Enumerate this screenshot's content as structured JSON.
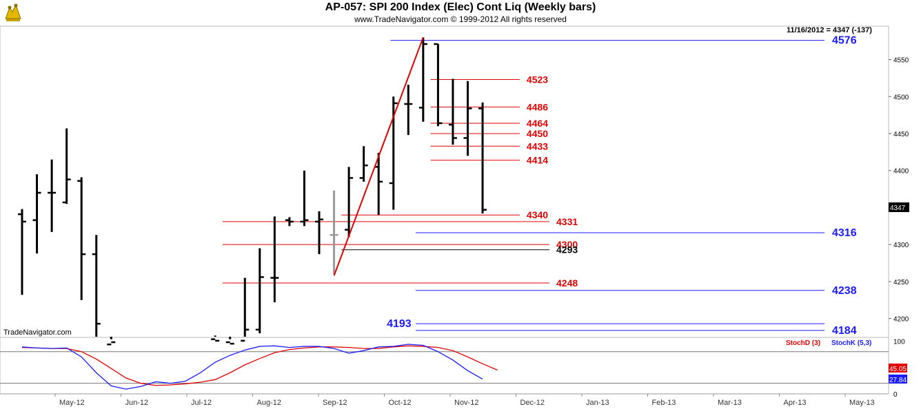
{
  "header": {
    "title": "AP-057:  SPI 200 Index (Elec) Cont Liq  (Weekly bars)",
    "subtitle": "www.TradeNavigator.com © 1999-2012 All rights reserved",
    "last_value_readout": "11/16/2012 = 4347 (-137)",
    "watermark": "TradeNavigator.com",
    "logo": "bull-bear-logo-icon"
  },
  "chart_data": [
    {
      "type": "bar",
      "subtype": "ohlc",
      "title": "AP-057:  SPI 200 Index (Elec) Cont Liq  (Weekly bars)",
      "xlabel": "",
      "ylabel": "",
      "ylim": [
        4160,
        4590
      ],
      "y_ticks": [
        4200,
        4250,
        4300,
        4350,
        4400,
        4450,
        4500,
        4550
      ],
      "x_tick_labels": [
        "May-12",
        "Jun-12",
        "Jul-12",
        "Aug-12",
        "Sep-12",
        "Oct-12",
        "Nov-12",
        "Dec-12",
        "Jan-13",
        "Feb-13",
        "Mar-13",
        "Apr-13",
        "May-13"
      ],
      "last_price_label": "4347",
      "bars": [
        {
          "week": 0,
          "o": 4341,
          "h": 4348,
          "l": 4232,
          "c": 4331
        },
        {
          "week": 1,
          "o": 4333,
          "h": 4395,
          "l": 4288,
          "c": 4370
        },
        {
          "week": 2,
          "o": 4370,
          "h": 4415,
          "l": 4317,
          "c": 4370
        },
        {
          "week": 3,
          "o": 4357,
          "h": 4457,
          "l": 4355,
          "c": 4388
        },
        {
          "week": 4,
          "o": 4386,
          "h": 4391,
          "l": 4225,
          "c": 4287
        },
        {
          "week": 5,
          "o": 4287,
          "h": 4313,
          "l": 4162,
          "c": 4193
        },
        {
          "week": 6,
          "o": 4165,
          "h": 4172,
          "l": 4150,
          "c": 4168
        },
        {
          "week": 13,
          "o": 4172,
          "h": 4177,
          "l": 4160,
          "c": 4170
        },
        {
          "week": 14,
          "o": 4168,
          "h": 4172,
          "l": 4162,
          "c": 4166
        },
        {
          "week": 15,
          "o": 4170,
          "h": 4255,
          "l": 4165,
          "c": 4185
        },
        {
          "week": 16,
          "o": 4185,
          "h": 4295,
          "l": 4180,
          "c": 4256
        },
        {
          "week": 17,
          "o": 4255,
          "h": 4338,
          "l": 4222,
          "c": 4255
        },
        {
          "week": 18,
          "o": 4333,
          "h": 4337,
          "l": 4325,
          "c": 4331
        },
        {
          "week": 19,
          "o": 4331,
          "h": 4400,
          "l": 4325,
          "c": 4333
        },
        {
          "week": 20,
          "o": 4331,
          "h": 4345,
          "l": 4287,
          "c": 4334
        },
        {
          "week": 21,
          "o": 4313,
          "h": 4373,
          "l": 4260,
          "c": 4313,
          "gray": true
        },
        {
          "week": 22,
          "o": 4320,
          "h": 4405,
          "l": 4310,
          "c": 4390
        },
        {
          "week": 23,
          "o": 4390,
          "h": 4433,
          "l": 4385,
          "c": 4407
        },
        {
          "week": 24,
          "o": 4405,
          "h": 4424,
          "l": 4340,
          "c": 4385
        },
        {
          "week": 25,
          "o": 4383,
          "h": 4500,
          "l": 4347,
          "c": 4491
        },
        {
          "week": 26,
          "o": 4490,
          "h": 4516,
          "l": 4448,
          "c": 4490
        },
        {
          "week": 27,
          "o": 4485,
          "h": 4580,
          "l": 4466,
          "c": 4571
        },
        {
          "week": 28,
          "o": 4571,
          "h": 4571,
          "l": 4460,
          "c": 4464
        },
        {
          "week": 29,
          "o": 4462,
          "h": 4524,
          "l": 4435,
          "c": 4444
        },
        {
          "week": 30,
          "o": 4444,
          "h": 4521,
          "l": 4420,
          "c": 4484
        },
        {
          "week": 31,
          "o": 4484,
          "h": 4492,
          "l": 4342,
          "c": 4347
        }
      ],
      "trend_line": {
        "from": {
          "week": 21,
          "price": 4258
        },
        "to": {
          "week": 27,
          "price": 4580
        }
      },
      "levels": [
        {
          "value": "4576",
          "color": "blue",
          "from_week": 24.8,
          "to_week": 65
        },
        {
          "value": "4523",
          "color": "red",
          "from_week": 27.5,
          "to_week": 33.5
        },
        {
          "value": "4486",
          "color": "red",
          "from_week": 27.5,
          "to_week": 33.5
        },
        {
          "value": "4464",
          "color": "red",
          "from_week": 27.5,
          "to_week": 33.5
        },
        {
          "value": "4450",
          "color": "red",
          "from_week": 27.5,
          "to_week": 33.5
        },
        {
          "value": "4433",
          "color": "red",
          "from_week": 27.5,
          "to_week": 33.5
        },
        {
          "value": "4414",
          "color": "red",
          "from_week": 27.5,
          "to_week": 33.5
        },
        {
          "value": "4340",
          "color": "red",
          "from_week": 21.5,
          "to_week": 33.5
        },
        {
          "value": "4331",
          "color": "red",
          "from_week": 13.5,
          "to_week": 35.5
        },
        {
          "value": "4316",
          "color": "blue",
          "from_week": 26.5,
          "to_week": 65
        },
        {
          "value": "4300",
          "color": "red",
          "from_week": 13.5,
          "to_week": 35.5
        },
        {
          "value": "4293",
          "color": "black",
          "from_week": 21.5,
          "to_week": 35.5
        },
        {
          "value": "4248",
          "color": "red",
          "from_week": 13.5,
          "to_week": 35.5
        },
        {
          "value": "4238",
          "color": "blue",
          "from_week": 26.5,
          "to_week": 65
        },
        {
          "value": "4193",
          "color": "blue",
          "label_left": true,
          "from_week": 26.5,
          "to_week": 65
        },
        {
          "value": "4184",
          "color": "blue",
          "from_week": 26.5,
          "to_week": 65
        }
      ]
    },
    {
      "type": "line",
      "title": "",
      "ylim": [
        0,
        100
      ],
      "y_ticks": [
        0,
        50,
        100
      ],
      "reference_lines": [
        80,
        20
      ],
      "series": [
        {
          "name": "StochD (3)",
          "color": "#e00000",
          "last_label": "45.05",
          "values": [
            88,
            87,
            86,
            86,
            80,
            66,
            48,
            30,
            20,
            16,
            17,
            19,
            22,
            27,
            40,
            55,
            67,
            78,
            84,
            87,
            89,
            89,
            88,
            86,
            86,
            89,
            91,
            90,
            88,
            82,
            70,
            57,
            45
          ]
        },
        {
          "name": "StochK (5,3)",
          "color": "#1a1aff",
          "last_label": "27.84",
          "values": [
            89,
            87,
            86,
            87,
            70,
            40,
            15,
            9,
            14,
            23,
            20,
            24,
            40,
            60,
            73,
            83,
            90,
            91,
            88,
            90,
            90,
            86,
            77,
            82,
            89,
            90,
            94,
            92,
            80,
            64,
            44,
            28
          ]
        }
      ]
    }
  ]
}
